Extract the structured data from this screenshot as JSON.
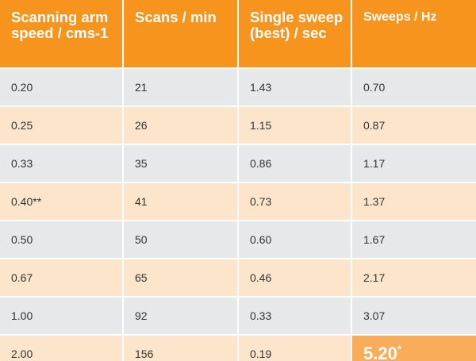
{
  "table": {
    "headers": [
      "Scanning arm speed / cms-1",
      "Scans / min",
      "Single sweep (best) / sec",
      "Sweeps / Hz"
    ],
    "rows": [
      [
        "0.20",
        "21",
        "1.43",
        "0.70"
      ],
      [
        "0.25",
        "26",
        "1.15",
        "0.87"
      ],
      [
        "0.33",
        "35",
        "0.86",
        "1.17"
      ],
      [
        "0.40**",
        "41",
        "0.73",
        "1.37"
      ],
      [
        "0.50",
        "50",
        "0.60",
        "1.67"
      ],
      [
        "0.67",
        "65",
        "0.46",
        "2.17"
      ],
      [
        "1.00",
        "92",
        "0.33",
        "3.07"
      ],
      [
        "2.00",
        "156",
        "0.19",
        "5.20"
      ]
    ],
    "highlight": {
      "value_mark": "*"
    }
  },
  "colors": {
    "header_bg": "#f7941d",
    "row_grey": "#e7e8e9",
    "row_peach": "#fde5cc",
    "highlight_bg": "#f9ac5a"
  }
}
